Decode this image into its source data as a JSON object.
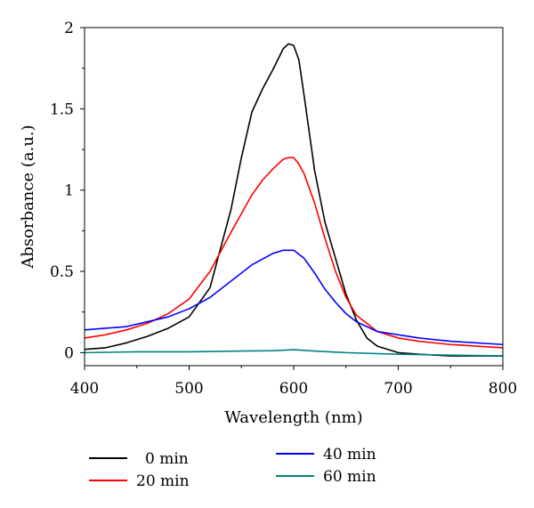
{
  "chart_data": {
    "type": "line",
    "xlabel": "Wavelength (nm)",
    "ylabel": "Absorbance (a.u.)",
    "xlim": [
      400,
      800
    ],
    "ylim": [
      -0.08,
      2.0
    ],
    "xticks": [
      400,
      500,
      600,
      700,
      800
    ],
    "xtick_labels": [
      "400",
      "500",
      "600",
      "700",
      "800"
    ],
    "yticks": [
      0,
      0.5,
      1,
      1.5,
      2
    ],
    "ytick_labels": [
      "0",
      "0.5",
      "1",
      "1.5",
      "2"
    ],
    "grid": false,
    "legend_position": "bottom",
    "series": [
      {
        "name": "0 min",
        "color": "#000000",
        "x": [
          400,
          420,
          440,
          460,
          480,
          500,
          520,
          540,
          550,
          560,
          570,
          580,
          590,
          595,
          600,
          605,
          610,
          620,
          630,
          640,
          650,
          660,
          670,
          680,
          700,
          720,
          750,
          800
        ],
        "y": [
          0.02,
          0.03,
          0.06,
          0.1,
          0.15,
          0.22,
          0.4,
          0.88,
          1.2,
          1.48,
          1.62,
          1.74,
          1.87,
          1.9,
          1.89,
          1.8,
          1.58,
          1.12,
          0.8,
          0.58,
          0.36,
          0.2,
          0.09,
          0.04,
          0.0,
          -0.01,
          -0.02,
          -0.02
        ]
      },
      {
        "name": "20 min",
        "color": "#ff0000",
        "x": [
          400,
          420,
          440,
          460,
          480,
          500,
          520,
          540,
          560,
          570,
          580,
          590,
          595,
          600,
          605,
          610,
          620,
          630,
          640,
          650,
          660,
          680,
          700,
          720,
          750,
          800
        ],
        "y": [
          0.09,
          0.11,
          0.14,
          0.18,
          0.24,
          0.33,
          0.5,
          0.74,
          0.97,
          1.06,
          1.13,
          1.19,
          1.2,
          1.2,
          1.16,
          1.1,
          0.92,
          0.7,
          0.5,
          0.34,
          0.23,
          0.13,
          0.09,
          0.07,
          0.05,
          0.03
        ]
      },
      {
        "name": "40 min",
        "color": "#0000ff",
        "x": [
          400,
          420,
          440,
          460,
          480,
          500,
          520,
          540,
          560,
          580,
          590,
          600,
          610,
          620,
          630,
          640,
          650,
          660,
          680,
          700,
          720,
          750,
          800
        ],
        "y": [
          0.14,
          0.15,
          0.16,
          0.19,
          0.22,
          0.27,
          0.34,
          0.44,
          0.54,
          0.61,
          0.63,
          0.63,
          0.58,
          0.49,
          0.39,
          0.31,
          0.24,
          0.19,
          0.13,
          0.11,
          0.09,
          0.07,
          0.05
        ]
      },
      {
        "name": "60 min",
        "color": "#008080",
        "x": [
          400,
          450,
          500,
          550,
          580,
          600,
          620,
          650,
          700,
          750,
          800
        ],
        "y": [
          0.0,
          0.005,
          0.005,
          0.01,
          0.012,
          0.018,
          0.01,
          0.0,
          -0.01,
          -0.015,
          -0.02
        ]
      }
    ]
  }
}
